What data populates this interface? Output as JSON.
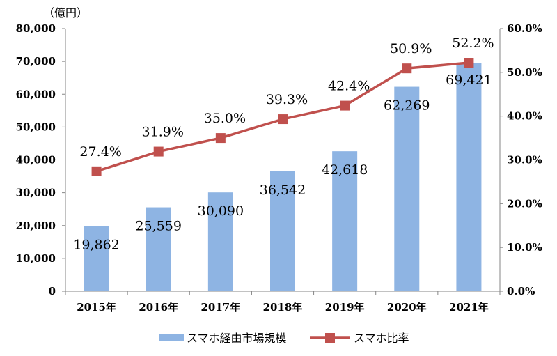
{
  "chart_data": {
    "type": "bar+line",
    "unit_label": "（億円）",
    "categories": [
      "2015年",
      "2016年",
      "2017年",
      "2018年",
      "2019年",
      "2020年",
      "2021年"
    ],
    "bar_series": {
      "name": "スマホ経由市場規模",
      "values": [
        19862,
        25559,
        30090,
        36542,
        42618,
        62269,
        69421
      ],
      "labels": [
        "19,862",
        "25,559",
        "30,090",
        "36,542",
        "42,618",
        "62,269",
        "69,421"
      ],
      "color": "#8EB4E3"
    },
    "line_series": {
      "name": "スマホ比率",
      "values": [
        27.4,
        31.9,
        35.0,
        39.3,
        42.4,
        50.9,
        52.2
      ],
      "labels": [
        "27.4%",
        "31.9%",
        "35.0%",
        "39.3%",
        "42.4%",
        "50.9%",
        "52.2%"
      ],
      "color": "#C0504D"
    },
    "left_axis": {
      "ylim": [
        0,
        80000
      ],
      "ticks": [
        "0",
        "10,000",
        "20,000",
        "30,000",
        "40,000",
        "50,000",
        "60,000",
        "70,000",
        "80,000"
      ]
    },
    "right_axis": {
      "ylim": [
        0,
        60
      ],
      "ticks": [
        "0.0%",
        "10.0%",
        "20.0%",
        "30.0%",
        "40.0%",
        "50.0%",
        "60.0%"
      ]
    },
    "grid": false,
    "legend_position": "bottom"
  }
}
